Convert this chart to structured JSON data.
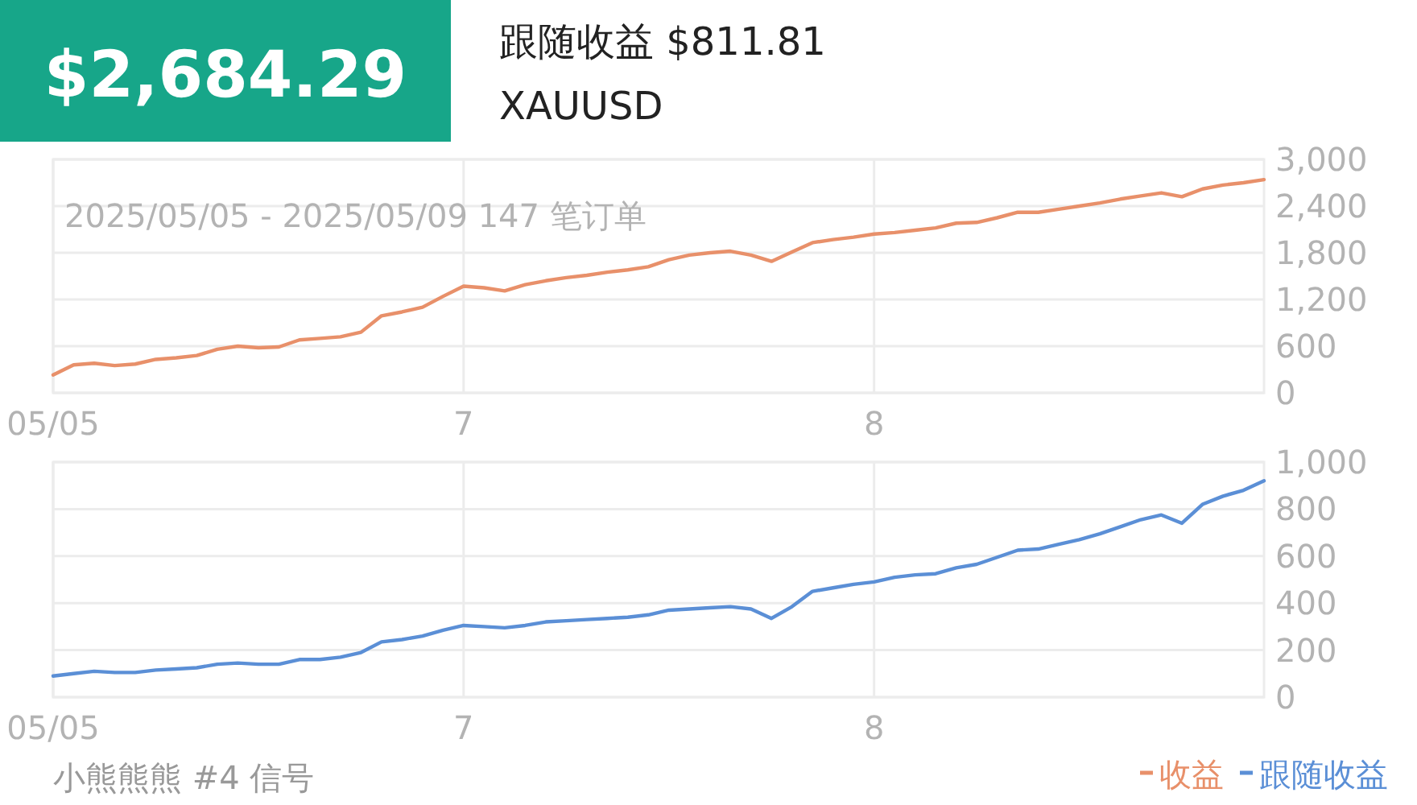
{
  "chart_data": [
    {
      "type": "line",
      "title": "$2,684.29",
      "subtitle": "跟随收益 $811.81",
      "annotations": [
        "XAUUSD",
        "2025/05/05 - 2025/05/09 147 笔订单"
      ],
      "categories": [
        "05/05",
        null,
        null,
        null,
        null,
        null,
        null,
        null,
        null,
        null,
        null,
        null,
        null,
        null,
        null,
        null,
        null,
        null,
        null,
        null,
        "7",
        null,
        null,
        null,
        null,
        null,
        null,
        null,
        null,
        null,
        null,
        null,
        null,
        null,
        null,
        null,
        null,
        null,
        null,
        null,
        "8",
        null,
        null,
        null,
        null,
        null,
        null,
        null,
        null,
        null,
        null,
        null,
        null,
        null,
        null,
        null,
        null,
        null,
        null,
        null
      ],
      "ylim": [
        0,
        3000
      ],
      "yticks": [
        {
          "value": 0,
          "label": "0"
        },
        {
          "value": 600,
          "label": "600"
        },
        {
          "value": 1200,
          "label": "1,200"
        },
        {
          "value": 1800,
          "label": "1,800"
        },
        {
          "value": 2400,
          "label": "2,400"
        },
        {
          "value": 3000,
          "label": "3,000"
        }
      ],
      "grid": true,
      "legend": "bottom right",
      "marker": "none",
      "line_style": "solid",
      "series": [
        {
          "name": "收益",
          "color": "#e8906a",
          "values": [
            230,
            360,
            380,
            350,
            370,
            430,
            450,
            480,
            560,
            600,
            580,
            590,
            680,
            700,
            720,
            780,
            990,
            1040,
            1100,
            1240,
            1370,
            1350,
            1310,
            1390,
            1440,
            1480,
            1510,
            1550,
            1580,
            1620,
            1710,
            1770,
            1800,
            1820,
            1770,
            1690,
            1810,
            1930,
            1970,
            2000,
            2040,
            2060,
            2090,
            2120,
            2180,
            2190,
            2250,
            2320,
            2320,
            2360,
            2400,
            2440,
            2490,
            2530,
            2570,
            2520,
            2620,
            2670,
            2700,
            2740
          ]
        }
      ]
    },
    {
      "type": "line",
      "annotations": [
        "小熊熊熊 #4 信号"
      ],
      "categories": [
        "05/05",
        null,
        null,
        null,
        null,
        null,
        null,
        null,
        null,
        null,
        null,
        null,
        null,
        null,
        null,
        null,
        null,
        null,
        null,
        null,
        "7",
        null,
        null,
        null,
        null,
        null,
        null,
        null,
        null,
        null,
        null,
        null,
        null,
        null,
        null,
        null,
        null,
        null,
        null,
        null,
        "8",
        null,
        null,
        null,
        null,
        null,
        null,
        null,
        null,
        null,
        null,
        null,
        null,
        null,
        null,
        null,
        null,
        null,
        null,
        null
      ],
      "ylim": [
        0,
        1000
      ],
      "yticks": [
        {
          "value": 0,
          "label": "0"
        },
        {
          "value": 200,
          "label": "200"
        },
        {
          "value": 400,
          "label": "400"
        },
        {
          "value": 600,
          "label": "600"
        },
        {
          "value": 800,
          "label": "800"
        },
        {
          "value": 1000,
          "label": "1,000"
        }
      ],
      "grid": true,
      "legend": "bottom right",
      "marker": "none",
      "line_style": "solid",
      "series": [
        {
          "name": "跟随收益",
          "color": "#5b8fd6",
          "values": [
            90,
            100,
            110,
            105,
            105,
            115,
            120,
            125,
            140,
            145,
            140,
            140,
            160,
            160,
            170,
            190,
            235,
            245,
            260,
            285,
            305,
            300,
            295,
            305,
            320,
            325,
            330,
            335,
            340,
            350,
            370,
            375,
            380,
            385,
            375,
            335,
            385,
            450,
            465,
            480,
            490,
            510,
            520,
            525,
            550,
            565,
            595,
            625,
            630,
            650,
            670,
            695,
            725,
            755,
            775,
            740,
            820,
            855,
            880,
            920
          ]
        }
      ]
    }
  ]
}
